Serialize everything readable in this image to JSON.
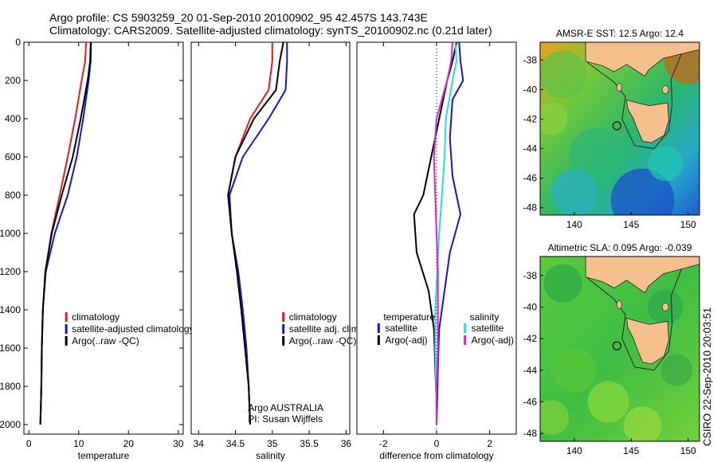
{
  "header": {
    "title_line1": "Argo profile: CS 5903259_20 01-Sep-2010 20100902_95 42.457S 143.743E",
    "title_line2": "Climatology: CARS2009. Satellite-adjusted climatology: synTS_20100902.nc (0.21d later)"
  },
  "side_stamp": "CSIRO 22-Sep-2010 20:03:51",
  "colors": {
    "climatology": "#e8191c",
    "satellite": "#1414d8",
    "argo": "#000000",
    "satellite_diff": "#22dde8",
    "argo_diff": "#e020d8",
    "land": "#f5c08e"
  },
  "chart_data": [
    {
      "type": "line",
      "panel": "temperature",
      "xlabel": "temperature",
      "ylabel": "",
      "xlim": [
        -1,
        31
      ],
      "ylim": [
        2050,
        0
      ],
      "xticks": [
        0,
        10,
        20,
        30
      ],
      "yticks": [
        0,
        200,
        400,
        600,
        800,
        1000,
        1200,
        1400,
        1600,
        1800,
        2000
      ],
      "legend_placement": "lower-center",
      "series": [
        {
          "name": "climatology",
          "color": "#e8191c",
          "x": [
            11.5,
            11.3,
            10.6,
            9.3,
            7.8,
            6.2,
            4.5,
            3.3,
            2.8,
            2.6,
            2.5,
            2.4,
            2.3
          ],
          "y": [
            0,
            100,
            200,
            400,
            600,
            800,
            1000,
            1200,
            1400,
            1600,
            1800,
            1900,
            2000
          ]
        },
        {
          "name": "satellite-adjusted climatology",
          "color": "#1414d8",
          "x": [
            12.5,
            12.4,
            12.0,
            10.9,
            9.6,
            7.8,
            5.2,
            3.4,
            2.8,
            2.6,
            2.5,
            2.4,
            2.3
          ],
          "y": [
            0,
            100,
            200,
            400,
            600,
            800,
            1000,
            1200,
            1400,
            1600,
            1800,
            1900,
            2000
          ]
        },
        {
          "name": "Argo(..raw -QC)",
          "color": "#000000",
          "x": [
            12.4,
            12.3,
            11.8,
            10.4,
            8.8,
            6.6,
            4.6,
            3.3,
            2.8,
            2.6,
            2.5,
            2.4,
            2.3
          ],
          "y": [
            0,
            100,
            200,
            400,
            600,
            800,
            1000,
            1200,
            1400,
            1600,
            1800,
            1900,
            2000
          ]
        }
      ]
    },
    {
      "type": "line",
      "panel": "salinity",
      "xlabel": "salinity",
      "ylabel": "",
      "xlim": [
        33.9,
        36.05
      ],
      "ylim": [
        2050,
        0
      ],
      "xticks": [
        34,
        34.5,
        35,
        35.5,
        36
      ],
      "xticklabels": [
        "34",
        "34.5",
        "35",
        "35.5",
        "36"
      ],
      "legend_placement": "lower-right",
      "annotations": [
        "Argo AUSTRALIA",
        "PI: Susan Wijffels"
      ],
      "series": [
        {
          "name": "climatology",
          "color": "#e8191c",
          "x": [
            35.0,
            35.0,
            34.95,
            34.7,
            34.5,
            34.4,
            34.45,
            34.52,
            34.58,
            34.63,
            34.68,
            34.7
          ],
          "y": [
            0,
            100,
            250,
            400,
            600,
            800,
            1000,
            1200,
            1400,
            1600,
            1800,
            2000
          ]
        },
        {
          "name": "satellite adj. clim.",
          "color": "#1414d8",
          "x": [
            35.2,
            35.2,
            35.18,
            34.95,
            34.6,
            34.42,
            34.45,
            34.54,
            34.6,
            34.65,
            34.68,
            34.7
          ],
          "y": [
            0,
            100,
            250,
            400,
            600,
            800,
            1000,
            1200,
            1400,
            1600,
            1800,
            2000
          ]
        },
        {
          "name": "Argo(..raw -QC)",
          "color": "#000000",
          "x": [
            35.15,
            35.1,
            35.05,
            34.75,
            34.5,
            34.4,
            34.45,
            34.52,
            34.58,
            34.63,
            34.68,
            34.7
          ],
          "y": [
            0,
            100,
            250,
            400,
            600,
            800,
            1000,
            1200,
            1400,
            1600,
            1800,
            2000
          ]
        }
      ]
    },
    {
      "type": "line",
      "panel": "difference",
      "xlabel": "difference from climatology",
      "ylabel": "",
      "xlim": [
        -3,
        3
      ],
      "ylim": [
        2050,
        0
      ],
      "xticks": [
        -2,
        0,
        2
      ],
      "zero_line": "dotted",
      "legend_placement": "lower-center",
      "legend_groups": [
        "temperature",
        "salinity"
      ],
      "series": [
        {
          "name": "satellite",
          "group": "temperature",
          "color": "#1414d8",
          "x": [
            0.85,
            0.9,
            1.0,
            0.6,
            0.5,
            0.6,
            0.9,
            0.5,
            0.3,
            0.1,
            0.05,
            0.02,
            0.0
          ],
          "y": [
            0,
            100,
            200,
            300,
            500,
            700,
            900,
            1100,
            1300,
            1500,
            1700,
            1900,
            2000
          ]
        },
        {
          "name": "Argo(-adj)",
          "group": "temperature",
          "color": "#000000",
          "x": [
            0.75,
            0.6,
            0.4,
            0.1,
            -0.2,
            -0.5,
            -0.85,
            -0.75,
            -0.3,
            -0.1,
            -0.05,
            0.0,
            0.0
          ],
          "y": [
            0,
            100,
            200,
            400,
            600,
            800,
            900,
            1100,
            1300,
            1500,
            1700,
            1900,
            2000
          ]
        },
        {
          "name": "satellite",
          "group": "salinity",
          "color": "#22dde8",
          "x": [
            0.7,
            0.75,
            0.6,
            0.35,
            0.3,
            0.2,
            0.1,
            0.02,
            -0.05,
            -0.05,
            -0.02,
            0.0
          ],
          "y": [
            0,
            100,
            200,
            400,
            600,
            800,
            1000,
            1200,
            1400,
            1600,
            1800,
            2000
          ]
        },
        {
          "name": "Argo(-adj)",
          "group": "salinity",
          "color": "#e020d8",
          "x": [
            0.6,
            0.55,
            0.4,
            0.0,
            -0.1,
            -0.05,
            0.0,
            0.05,
            0.05,
            0.05,
            0.0,
            0.0
          ],
          "y": [
            0,
            100,
            200,
            400,
            600,
            800,
            1000,
            1200,
            1400,
            1600,
            1800,
            2000
          ]
        }
      ]
    },
    {
      "type": "heatmap",
      "panel": "sst-map",
      "title": "AMSR-E SST: 12.5  Argo: 12.4",
      "xlim": [
        137,
        151
      ],
      "ylim": [
        -48.5,
        -36.8
      ],
      "xticks": [
        140,
        145,
        150
      ],
      "yticks": [
        -38,
        -40,
        -42,
        -44,
        -46,
        -48
      ],
      "marker": {
        "lon": 143.743,
        "lat": -42.457
      }
    },
    {
      "type": "heatmap",
      "panel": "sla-map",
      "title": "Altimetric SLA: 0.095  Argo: -0.039",
      "xlim": [
        137,
        151
      ],
      "ylim": [
        -48.5,
        -36.8
      ],
      "xticks": [
        140,
        145,
        150
      ],
      "yticks": [
        -38,
        -40,
        -42,
        -44,
        -46,
        -48
      ],
      "marker": {
        "lon": 143.743,
        "lat": -42.457
      }
    }
  ]
}
